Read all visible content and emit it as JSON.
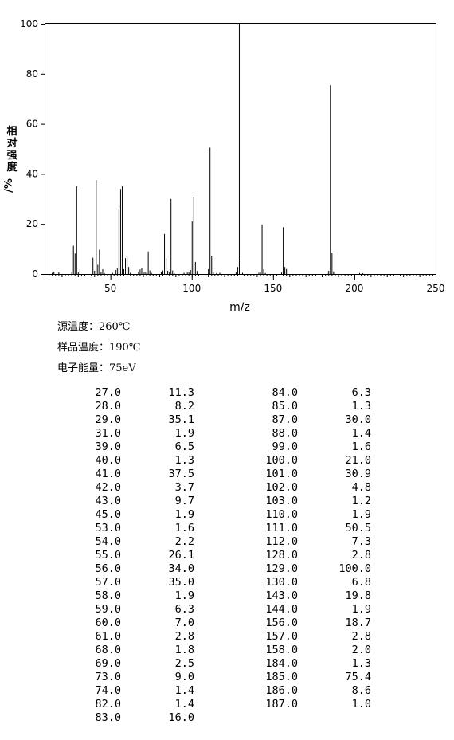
{
  "chart_data": {
    "type": "bar",
    "xlabel": "m/z",
    "ylabel": "相对强度/%",
    "xlim": [
      10,
      250
    ],
    "ylim": [
      0,
      100
    ],
    "x_ticks": [
      50,
      100,
      150,
      200,
      250
    ],
    "y_ticks": [
      0,
      20,
      40,
      60,
      80,
      100
    ],
    "x_tick_labels": [
      "50",
      "100",
      "150",
      "200",
      "250"
    ],
    "y_tick_labels": [
      "0",
      "20",
      "40",
      "60",
      "80",
      "100"
    ],
    "grid": false,
    "peaks": [
      {
        "mz": "27.0",
        "abundance": "11.3"
      },
      {
        "mz": "28.0",
        "abundance": "8.2"
      },
      {
        "mz": "29.0",
        "abundance": "35.1"
      },
      {
        "mz": "31.0",
        "abundance": "1.9"
      },
      {
        "mz": "39.0",
        "abundance": "6.5"
      },
      {
        "mz": "40.0",
        "abundance": "1.3"
      },
      {
        "mz": "41.0",
        "abundance": "37.5"
      },
      {
        "mz": "42.0",
        "abundance": "3.7"
      },
      {
        "mz": "43.0",
        "abundance": "9.7"
      },
      {
        "mz": "45.0",
        "abundance": "1.9"
      },
      {
        "mz": "53.0",
        "abundance": "1.6"
      },
      {
        "mz": "54.0",
        "abundance": "2.2"
      },
      {
        "mz": "55.0",
        "abundance": "26.1"
      },
      {
        "mz": "56.0",
        "abundance": "34.0"
      },
      {
        "mz": "57.0",
        "abundance": "35.0"
      },
      {
        "mz": "58.0",
        "abundance": "1.9"
      },
      {
        "mz": "59.0",
        "abundance": "6.3"
      },
      {
        "mz": "60.0",
        "abundance": "7.0"
      },
      {
        "mz": "61.0",
        "abundance": "2.8"
      },
      {
        "mz": "68.0",
        "abundance": "1.8"
      },
      {
        "mz": "69.0",
        "abundance": "2.5"
      },
      {
        "mz": "73.0",
        "abundance": "9.0"
      },
      {
        "mz": "74.0",
        "abundance": "1.4"
      },
      {
        "mz": "82.0",
        "abundance": "1.4"
      },
      {
        "mz": "83.0",
        "abundance": "16.0"
      },
      {
        "mz": "84.0",
        "abundance": "6.3"
      },
      {
        "mz": "85.0",
        "abundance": "1.3"
      },
      {
        "mz": "87.0",
        "abundance": "30.0"
      },
      {
        "mz": "88.0",
        "abundance": "1.4"
      },
      {
        "mz": "99.0",
        "abundance": "1.6"
      },
      {
        "mz": "100.0",
        "abundance": "21.0"
      },
      {
        "mz": "101.0",
        "abundance": "30.9"
      },
      {
        "mz": "102.0",
        "abundance": "4.8"
      },
      {
        "mz": "103.0",
        "abundance": "1.2"
      },
      {
        "mz": "110.0",
        "abundance": "1.9"
      },
      {
        "mz": "111.0",
        "abundance": "50.5"
      },
      {
        "mz": "112.0",
        "abundance": "7.3"
      },
      {
        "mz": "128.0",
        "abundance": "2.8"
      },
      {
        "mz": "129.0",
        "abundance": "100.0"
      },
      {
        "mz": "130.0",
        "abundance": "6.8"
      },
      {
        "mz": "143.0",
        "abundance": "19.8"
      },
      {
        "mz": "144.0",
        "abundance": "1.9"
      },
      {
        "mz": "156.0",
        "abundance": "18.7"
      },
      {
        "mz": "157.0",
        "abundance": "2.8"
      },
      {
        "mz": "158.0",
        "abundance": "2.0"
      },
      {
        "mz": "184.0",
        "abundance": "1.3"
      },
      {
        "mz": "185.0",
        "abundance": "75.4"
      },
      {
        "mz": "186.0",
        "abundance": "8.6"
      },
      {
        "mz": "187.0",
        "abundance": "1.0"
      }
    ],
    "minor_peaks": [
      {
        "mz": 14,
        "abundance": 0.5
      },
      {
        "mz": 15,
        "abundance": 0.9
      },
      {
        "mz": 18,
        "abundance": 0.7
      },
      {
        "mz": 26,
        "abundance": 0.8
      },
      {
        "mz": 30,
        "abundance": 0.6
      },
      {
        "mz": 44,
        "abundance": 0.8
      },
      {
        "mz": 46,
        "abundance": 0.4
      },
      {
        "mz": 51,
        "abundance": 0.5
      },
      {
        "mz": 62,
        "abundance": 0.5
      },
      {
        "mz": 67,
        "abundance": 0.9
      },
      {
        "mz": 70,
        "abundance": 0.6
      },
      {
        "mz": 71,
        "abundance": 0.7
      },
      {
        "mz": 72,
        "abundance": 0.5
      },
      {
        "mz": 75,
        "abundance": 0.4
      },
      {
        "mz": 81,
        "abundance": 0.8
      },
      {
        "mz": 86,
        "abundance": 0.6
      },
      {
        "mz": 89,
        "abundance": 0.4
      },
      {
        "mz": 95,
        "abundance": 0.5
      },
      {
        "mz": 97,
        "abundance": 0.6
      },
      {
        "mz": 98,
        "abundance": 0.7
      },
      {
        "mz": 113,
        "abundance": 0.6
      },
      {
        "mz": 115,
        "abundance": 0.4
      },
      {
        "mz": 117,
        "abundance": 0.5
      },
      {
        "mz": 127,
        "abundance": 0.7
      },
      {
        "mz": 131,
        "abundance": 0.5
      },
      {
        "mz": 141,
        "abundance": 0.5
      },
      {
        "mz": 142,
        "abundance": 0.6
      },
      {
        "mz": 145,
        "abundance": 0.4
      },
      {
        "mz": 155,
        "abundance": 0.6
      },
      {
        "mz": 183,
        "abundance": 0.5
      },
      {
        "mz": 203,
        "abundance": 0.4
      },
      {
        "mz": 205,
        "abundance": 0.3
      }
    ]
  },
  "conditions": [
    {
      "label": "源温度：",
      "value": "260℃"
    },
    {
      "label": "样品温度：",
      "value": "190℃"
    },
    {
      "label": "电子能量：",
      "value": "75eV"
    }
  ],
  "colors": {
    "axis": "#000000",
    "peak": "#000000",
    "background": "#ffffff"
  }
}
